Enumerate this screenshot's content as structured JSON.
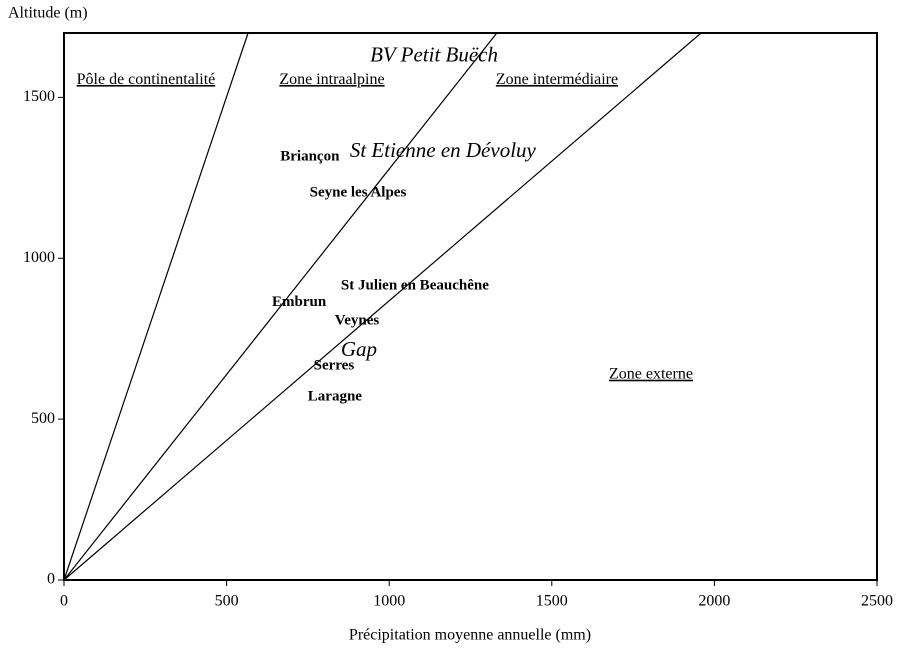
{
  "chart_data": {
    "type": "scatter",
    "ylabel": "Altitude (m)",
    "xlabel": "Précipitation moyenne annuelle (mm)",
    "xlim": [
      0,
      2500
    ],
    "ylim": [
      0,
      1700
    ],
    "xticks": [
      0,
      500,
      1000,
      1500,
      2000,
      2500
    ],
    "yticks": [
      0,
      500,
      1000,
      1500
    ],
    "color": "#000000",
    "lines": [
      {
        "x": [
          0,
          566
        ],
        "values": [
          0,
          1700
        ]
      },
      {
        "x": [
          0,
          1331
        ],
        "values": [
          0,
          1700
        ]
      },
      {
        "x": [
          0,
          1959
        ],
        "values": [
          0,
          1700
        ]
      }
    ],
    "stations": {
      "labels": [
        "Briançon",
        "Seyne les Alpes",
        "St Julien en Beauchêne",
        "Embrun",
        "Veynes",
        "Serres",
        "Laragne"
      ],
      "x": [
        756,
        904,
        1079,
        723,
        901,
        830,
        833
      ],
      "values": [
        1314,
        1202,
        913,
        863,
        804,
        665,
        568
      ]
    },
    "basins": {
      "labels": [
        "BV Petit Buëch",
        "St Etienne en Dévoluy",
        "Gap"
      ],
      "x": [
        1138,
        1165,
        907
      ],
      "values": [
        1627,
        1329,
        711
      ]
    },
    "zones": {
      "labels": [
        "Pôle de continentalité",
        "Zone intraalpine",
        "Zone intermédiaire",
        "Zone externe"
      ],
      "x": [
        252,
        824,
        1516,
        1805
      ],
      "values": [
        1553,
        1553,
        1553,
        637
      ]
    }
  }
}
